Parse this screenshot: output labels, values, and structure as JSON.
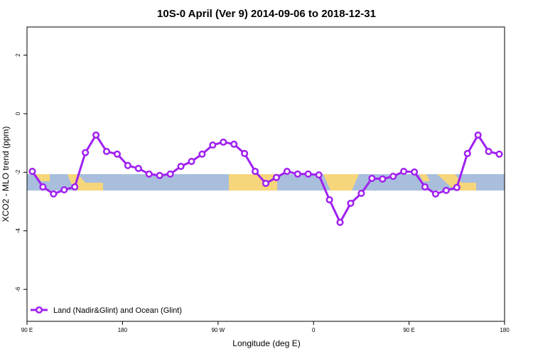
{
  "chart_data": {
    "type": "line",
    "title": "10S-0 April (Ver 9)   2014-09-06 to 2018-12-31",
    "xlabel": "Longitude (deg E)",
    "ylabel": "XCO2 - MLO trend (ppm)",
    "x": [
      95,
      105,
      115,
      125,
      135,
      145,
      155,
      165,
      175,
      185,
      195,
      205,
      215,
      225,
      235,
      245,
      255,
      265,
      275,
      285,
      295,
      305,
      315,
      325,
      335,
      345,
      355,
      365,
      375,
      385,
      395,
      405,
      415,
      425,
      435,
      445,
      455,
      465,
      475,
      485,
      495,
      505,
      515,
      525,
      535
    ],
    "series": [
      {
        "name": "Land (Nadir&Glint) and Ocean (Glint)",
        "color": "#a020f0",
        "values": [
          -1.97,
          -2.5,
          -2.74,
          -2.6,
          -2.5,
          -1.33,
          -0.73,
          -1.29,
          -1.38,
          -1.77,
          -1.87,
          -2.06,
          -2.11,
          -2.06,
          -1.8,
          -1.63,
          -1.38,
          -1.07,
          -0.97,
          -1.04,
          -1.36,
          -1.97,
          -2.38,
          -2.18,
          -1.97,
          -2.06,
          -2.06,
          -2.09,
          -2.94,
          -3.71,
          -3.06,
          -2.72,
          -2.21,
          -2.23,
          -2.14,
          -1.97,
          -1.99,
          -2.5,
          -2.74,
          -2.62,
          -2.52,
          -1.36,
          -0.73,
          -1.29,
          -1.38
        ]
      }
    ],
    "xlim": [
      90,
      540
    ],
    "ylim": [
      -7.09,
      2.96
    ],
    "xticks": [
      {
        "value": 90,
        "label": "90 E"
      },
      {
        "value": 180,
        "label": "180"
      },
      {
        "value": 270,
        "label": "90 W"
      },
      {
        "value": 360,
        "label": "0"
      },
      {
        "value": 450,
        "label": "90 E"
      },
      {
        "value": 540,
        "label": "180"
      }
    ],
    "yticks": [
      -6,
      -4,
      -2,
      0,
      2
    ],
    "legend": "bottom-left"
  }
}
